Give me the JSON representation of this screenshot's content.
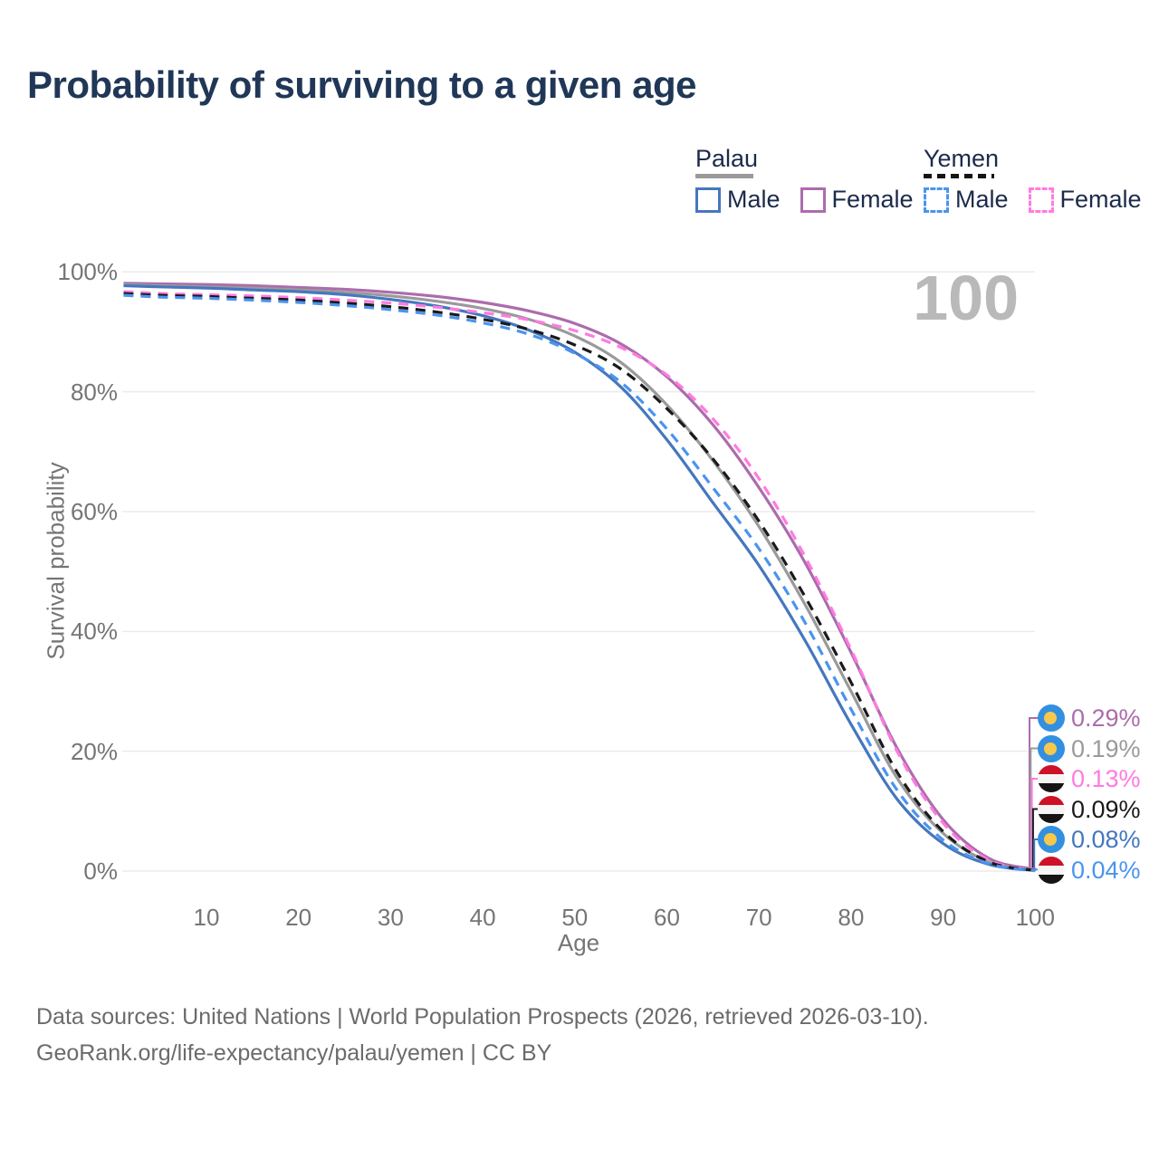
{
  "title": "Probability of surviving to a given age",
  "watermark_age": "100",
  "legend": {
    "groups": [
      {
        "name": "Palau",
        "line_style": "solid",
        "line_color": "#9a9a9a",
        "items": [
          {
            "label": "Male",
            "color": "#4577be"
          },
          {
            "label": "Female",
            "color": "#ac6cac"
          }
        ]
      },
      {
        "name": "Yemen",
        "line_style": "dashed",
        "line_color": "#151515",
        "items": [
          {
            "label": "Male",
            "color": "#4b94ef"
          },
          {
            "label": "Female",
            "color": "#ff7be0"
          }
        ]
      }
    ]
  },
  "chart_data": {
    "type": "line",
    "title": "Probability of surviving to a given age",
    "xlabel": "Age",
    "ylabel": "Survival probability",
    "xlim": [
      0,
      100
    ],
    "ylim": [
      0,
      100
    ],
    "grid": "horizontal",
    "legend_position": "top-right",
    "x_ticks": [
      "10",
      "20",
      "30",
      "40",
      "50",
      "60",
      "70",
      "80",
      "90",
      "100"
    ],
    "y_ticks": [
      "0%",
      "20%",
      "40%",
      "60%",
      "80%",
      "100%"
    ],
    "x": [
      1,
      5,
      10,
      15,
      20,
      25,
      30,
      35,
      40,
      45,
      50,
      55,
      60,
      65,
      70,
      75,
      80,
      85,
      90,
      95,
      100
    ],
    "series": [
      {
        "name": "Palau Female",
        "country": "Palau",
        "sex": "Female",
        "color": "#ac6cac",
        "dash": "solid",
        "end_label": "0.29%",
        "values": [
          98.1,
          98.0,
          97.9,
          97.7,
          97.4,
          97.1,
          96.6,
          95.9,
          94.9,
          93.5,
          91.4,
          88.0,
          82.5,
          74.5,
          64.0,
          51.5,
          36.5,
          20.5,
          8.6,
          2.1,
          0.29
        ]
      },
      {
        "name": "Palau",
        "country": "Palau",
        "sex": "All",
        "color": "#9a9a9a",
        "dash": "solid",
        "end_label": "0.19%",
        "values": [
          97.9,
          97.7,
          97.5,
          97.3,
          97.0,
          96.6,
          96.0,
          95.1,
          93.9,
          92.1,
          89.3,
          84.9,
          77.8,
          68.5,
          57.5,
          44.5,
          30.0,
          15.5,
          6.3,
          1.5,
          0.19
        ]
      },
      {
        "name": "Yemen Female",
        "country": "Yemen",
        "sex": "Female",
        "color": "#ff7be0",
        "dash": "dashed",
        "end_label": "0.13%",
        "values": [
          96.7,
          96.4,
          96.2,
          96.0,
          95.7,
          95.3,
          94.8,
          94.1,
          93.2,
          92.0,
          90.2,
          87.4,
          82.8,
          75.5,
          65.5,
          52.5,
          37.0,
          20.0,
          8.0,
          1.8,
          0.13
        ]
      },
      {
        "name": "Yemen",
        "country": "Yemen",
        "sex": "All",
        "color": "#1a1a1a",
        "dash": "dashed",
        "end_label": "0.09%",
        "values": [
          96.4,
          96.1,
          95.9,
          95.6,
          95.3,
          94.8,
          94.2,
          93.3,
          92.1,
          90.4,
          87.8,
          83.8,
          77.2,
          68.8,
          58.4,
          45.8,
          31.5,
          16.5,
          6.6,
          1.5,
          0.09
        ]
      },
      {
        "name": "Palau Male",
        "country": "Palau",
        "sex": "Male",
        "color": "#4577be",
        "dash": "solid",
        "end_label": "0.08%",
        "values": [
          97.7,
          97.5,
          97.3,
          97.0,
          96.7,
          96.2,
          95.4,
          94.3,
          92.7,
          90.3,
          86.6,
          80.8,
          72.0,
          61.5,
          51.0,
          38.5,
          24.5,
          12.0,
          4.6,
          1.1,
          0.08
        ]
      },
      {
        "name": "Yemen Male",
        "country": "Yemen",
        "sex": "Male",
        "color": "#4b94ef",
        "dash": "dashed",
        "end_label": "0.04%",
        "values": [
          96.1,
          95.8,
          95.6,
          95.3,
          94.9,
          94.4,
          93.7,
          92.8,
          91.5,
          89.6,
          86.4,
          81.6,
          73.8,
          64.0,
          53.8,
          41.5,
          27.0,
          13.5,
          5.2,
          1.2,
          0.04
        ]
      }
    ]
  },
  "footer": {
    "line1": "Data sources: United Nations | World Population Prospects (2026, retrieved 2026-03-10).",
    "line2": "GeoRank.org/life-expectancy/palau/yemen | CC BY"
  }
}
